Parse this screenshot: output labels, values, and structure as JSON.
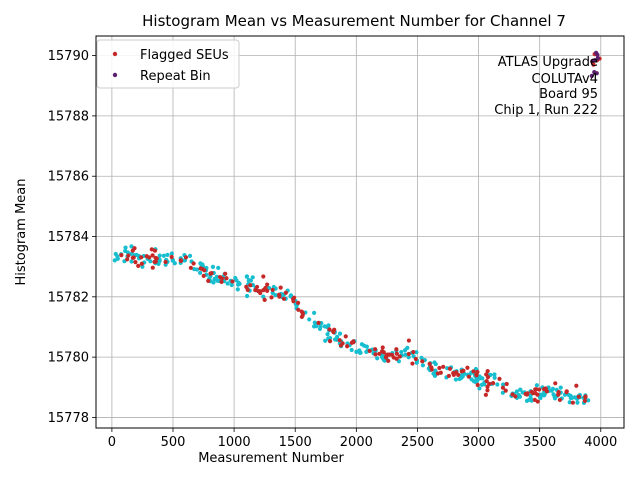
{
  "chart_data": {
    "type": "scatter",
    "title": "Histogram Mean vs Measurement Number for Channel 7",
    "xlabel": "Measurement Number",
    "ylabel": "Histogram Mean",
    "xlim": [
      -130,
      4190
    ],
    "ylim": [
      15777.65,
      15790.65
    ],
    "xticks": [
      0,
      500,
      1000,
      1500,
      2000,
      2500,
      3000,
      3500,
      4000
    ],
    "yticks": [
      15778,
      15780,
      15782,
      15784,
      15786,
      15788,
      15790
    ],
    "grid": true,
    "legend_position": "top-left",
    "annotation": [
      "ATLAS Upgrade",
      "COLUTAv4",
      "Board 95",
      "Chip 1, Run 222"
    ],
    "trend": [
      [
        0,
        15783.4
      ],
      [
        250,
        15783.3
      ],
      [
        500,
        15783.3
      ],
      [
        650,
        15783.1
      ],
      [
        800,
        15782.7
      ],
      [
        1000,
        15782.5
      ],
      [
        1200,
        15782.3
      ],
      [
        1400,
        15782.1
      ],
      [
        1500,
        15781.8
      ],
      [
        1600,
        15781.3
      ],
      [
        1700,
        15781.0
      ],
      [
        1850,
        15780.6
      ],
      [
        2000,
        15780.35
      ],
      [
        2200,
        15780.1
      ],
      [
        2400,
        15780.0
      ],
      [
        2550,
        15779.9
      ],
      [
        2650,
        15779.5
      ],
      [
        2800,
        15779.45
      ],
      [
        2950,
        15779.45
      ],
      [
        3050,
        15779.2
      ],
      [
        3200,
        15779.1
      ],
      [
        3300,
        15778.8
      ],
      [
        3400,
        15778.7
      ],
      [
        3550,
        15778.85
      ],
      [
        3700,
        15778.7
      ],
      [
        3850,
        15778.6
      ]
    ],
    "noise": 0.14,
    "series": [
      {
        "name": "Flagged SEUs",
        "color": "#c62828",
        "count": 170,
        "x_range": [
          60,
          3880
        ]
      },
      {
        "name": "Repeat Bin",
        "color": "#5b1f6e",
        "count": 8,
        "x_range": [
          3880,
          3990
        ]
      }
    ],
    "base_points": {
      "color": "#17becf",
      "count": 300,
      "x_range": [
        20,
        3900
      ]
    },
    "extra_points": [
      {
        "series": 0,
        "x": 3060,
        "y": 15778.75
      },
      {
        "series": 0,
        "x": 2430,
        "y": 15780.55
      },
      {
        "series": 0,
        "x": 1250,
        "y": 15781.9
      },
      {
        "series": 0,
        "x": 3950,
        "y": 15790.05
      },
      {
        "series": 0,
        "x": 3930,
        "y": 15789.8
      },
      {
        "series": 0,
        "x": 3970,
        "y": 15789.85
      },
      {
        "series": 0,
        "x": 3990,
        "y": 15789.9
      },
      {
        "series": 0,
        "x": 3940,
        "y": 15789.7
      },
      {
        "series": 0,
        "x": 3800,
        "y": 15779.05
      },
      {
        "series": 0,
        "x": 3870,
        "y": 15778.55
      }
    ]
  }
}
